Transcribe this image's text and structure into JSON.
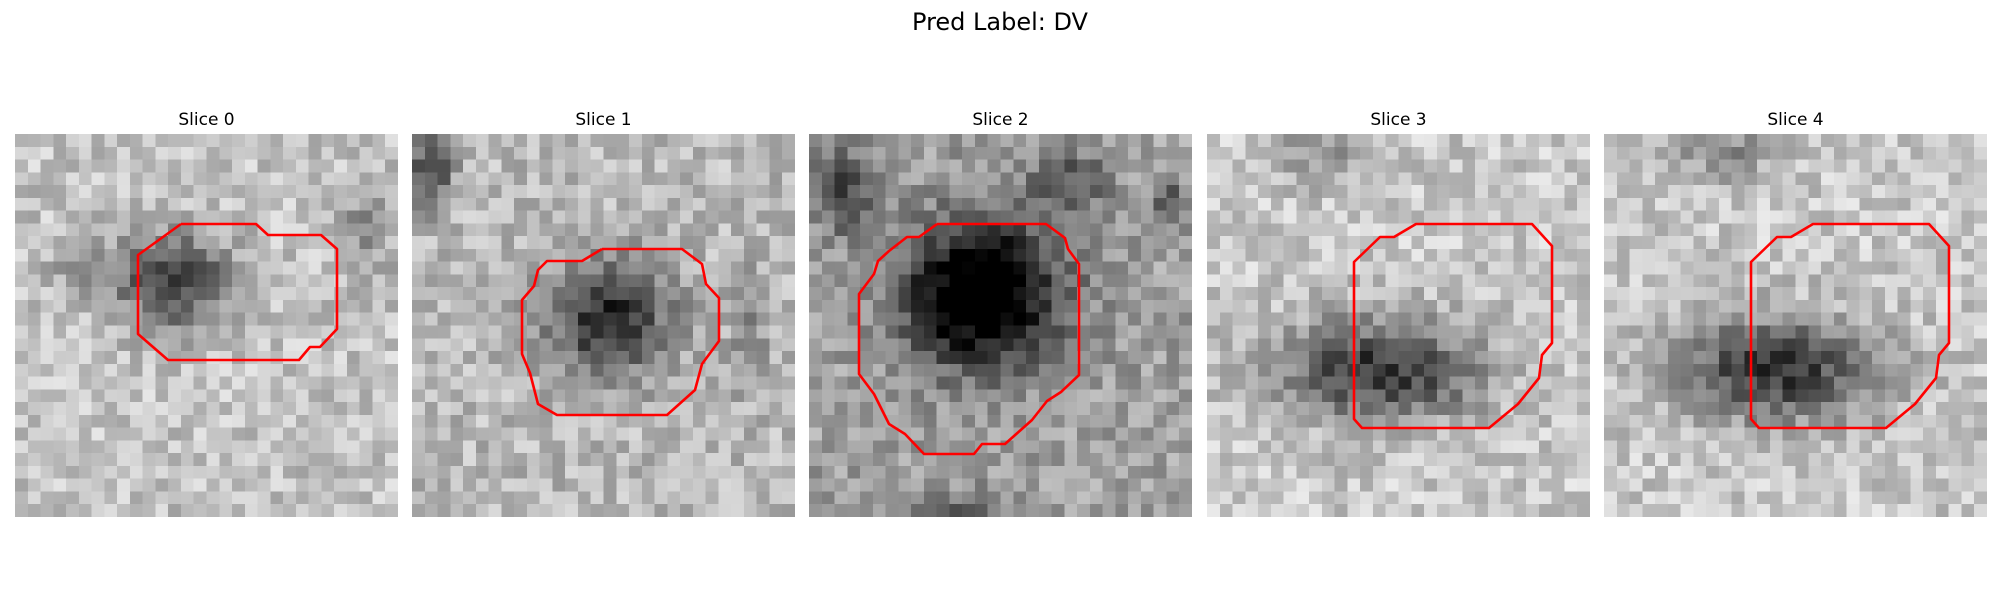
{
  "title": "Pred Label: DV",
  "contour_color": "#ff0000",
  "slices": [
    {
      "label": "Slice 0"
    },
    {
      "label": "Slice 1"
    },
    {
      "label": "Slice 2"
    },
    {
      "label": "Slice 3"
    },
    {
      "label": "Slice 4"
    }
  ]
}
